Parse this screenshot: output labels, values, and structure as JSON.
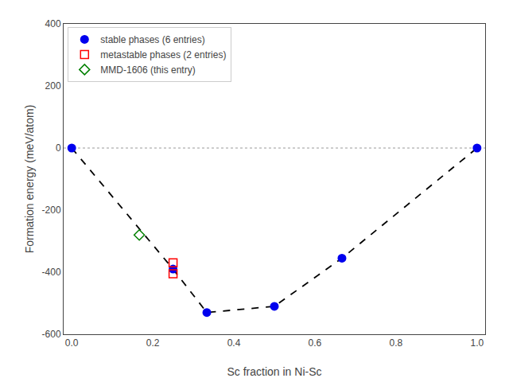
{
  "chart_data": {
    "type": "scatter",
    "xlabel": "Sc fraction in Ni-Sc",
    "ylabel": "Formation energy (meV/atom)",
    "xlim": [
      -0.02,
      1.02
    ],
    "ylim": [
      -600,
      400
    ],
    "xticks": [
      {
        "value": 0.0,
        "label": "0.0"
      },
      0.2,
      0.4,
      0.6,
      0.8,
      {
        "value": 1.0,
        "label": "1.0"
      }
    ],
    "yticks": [
      -600,
      -400,
      -200,
      0,
      200,
      400
    ],
    "grid": false,
    "legend": "upper left",
    "series": [
      {
        "type": "hline",
        "values": [
          0
        ],
        "color": "#999999",
        "line_style": "dotted"
      },
      {
        "type": "line",
        "x": [
          0.0,
          0.25,
          0.3333,
          0.5,
          0.6667,
          1.0
        ],
        "values": [
          0,
          -390,
          -530,
          -510,
          -355,
          0
        ],
        "color": "#000000",
        "line_style": "dashed"
      },
      {
        "type": "scatter",
        "name": "stable phases (6 entries)",
        "x": [
          0.0,
          0.25,
          0.3333,
          0.5,
          0.6667,
          1.0
        ],
        "values": [
          0,
          -390,
          -530,
          -510,
          -355,
          0
        ],
        "color": "#0000ee",
        "marker": "circle"
      },
      {
        "type": "scatter",
        "name": "metastable phases (2 entries)",
        "x": [
          0.25,
          0.25
        ],
        "values": [
          -370,
          -405
        ],
        "color": "#ff0000",
        "marker": "square-open"
      },
      {
        "type": "scatter",
        "name": "MMD-1606 (this entry)",
        "x": [
          0.1667
        ],
        "values": [
          -280
        ],
        "color": "#008000",
        "marker": "diamond-open"
      }
    ]
  }
}
